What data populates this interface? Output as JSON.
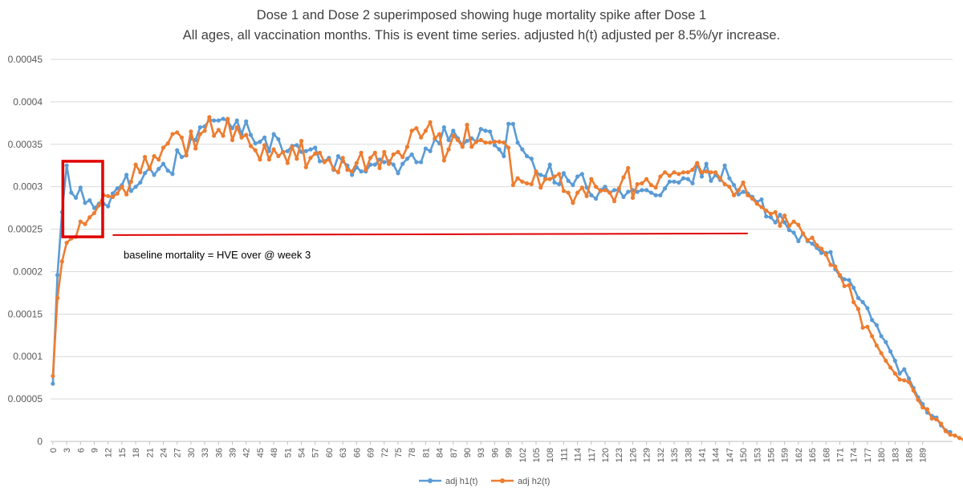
{
  "chart_data": {
    "type": "line",
    "title": "Dose 1 and Dose 2 superimposed  showing huge mortality spike after Dose 1",
    "subtitle": "All ages, all vaccination months. This is event time series. adjusted h(t) adjusted per 8.5%/yr increase.",
    "xlabel": "",
    "ylabel": "",
    "ylim": [
      0,
      0.00045
    ],
    "yticks": [
      "0",
      "0.00005",
      "0.0001",
      "0.00015",
      "0.0002",
      "0.00025",
      "0.0003",
      "0.00035",
      "0.0004",
      "0.00045"
    ],
    "xticks": [
      0,
      3,
      6,
      9,
      12,
      15,
      18,
      21,
      24,
      27,
      30,
      33,
      36,
      39,
      42,
      45,
      48,
      51,
      54,
      57,
      60,
      63,
      66,
      69,
      72,
      75,
      78,
      81,
      84,
      87,
      90,
      93,
      96,
      99,
      102,
      105,
      108,
      111,
      114,
      117,
      120,
      123,
      126,
      129,
      132,
      135,
      138,
      141,
      144,
      147,
      150,
      153,
      156,
      159,
      162,
      165,
      168,
      171,
      174,
      177,
      180,
      183,
      186,
      189
    ],
    "series": [
      {
        "name": "adj h1(t)",
        "color": "#5B9BD5",
        "values": [
          6.8e-05,
          0.000196,
          0.00027,
          0.000325,
          0.000293,
          0.000287,
          0.000299,
          0.000281,
          0.000284,
          0.000275,
          0.00028,
          0.00028,
          0.000277,
          0.000292,
          0.000298,
          0.000302,
          0.000314,
          0.000295,
          0.0003,
          0.000305,
          0.000316,
          0.000322,
          0.000314,
          0.000321,
          0.000327,
          0.000319,
          0.000315,
          0.000343,
          0.000335,
          0.000337,
          0.000357,
          0.000355,
          0.00037,
          0.000371,
          0.000379,
          0.000378,
          0.000378,
          0.00038,
          0.000377,
          0.000369,
          0.000378,
          0.000362,
          0.000377,
          0.000361,
          0.000351,
          0.000353,
          0.000358,
          0.000342,
          0.000362,
          0.000356,
          0.000341,
          0.000342,
          0.000348,
          0.000349,
          0.000341,
          0.000342,
          0.000344,
          0.000346,
          0.00033,
          0.00033,
          0.000334,
          0.00032,
          0.000336,
          0.00033,
          0.000325,
          0.000314,
          0.000323,
          0.000318,
          0.000318,
          0.000326,
          0.000326,
          0.000332,
          0.000329,
          0.00033,
          0.000326,
          0.000316,
          0.000327,
          0.000333,
          0.000338,
          0.000329,
          0.000329,
          0.000345,
          0.000342,
          0.000356,
          0.000351,
          0.00037,
          0.000355,
          0.000366,
          0.000357,
          0.000349,
          0.000354,
          0.000357,
          0.000353,
          0.000368,
          0.000366,
          0.000365,
          0.000349,
          0.000344,
          0.000336,
          0.000374,
          0.000374,
          0.000352,
          0.000344,
          0.000336,
          0.000333,
          0.000317,
          0.000314,
          0.000312,
          0.000326,
          0.000305,
          0.000303,
          0.000316,
          0.000307,
          0.000302,
          0.000312,
          0.000315,
          0.000299,
          0.00029,
          0.000286,
          0.000296,
          0.0003,
          0.000293,
          0.000296,
          0.000296,
          0.000288,
          0.000294,
          0.000296,
          0.000294,
          0.000296,
          0.000296,
          0.000293,
          0.00029,
          0.00029,
          0.000298,
          0.000306,
          0.000306,
          0.000305,
          0.00031,
          0.000309,
          0.000304,
          0.000327,
          0.000312,
          0.000327,
          0.000307,
          0.000314,
          0.000308,
          0.000325,
          0.00031,
          0.000302,
          0.000291,
          0.000294,
          0.000292,
          0.000288,
          0.000282,
          0.000285,
          0.000265,
          0.000264,
          0.000258,
          0.000267,
          0.000258,
          0.000249,
          0.000246,
          0.000236,
          0.000245,
          0.000236,
          0.000233,
          0.000228,
          0.000222,
          0.000222,
          0.000223,
          0.000203,
          0.000195,
          0.000191,
          0.00019,
          0.000181,
          0.000169,
          0.000164,
          0.000157,
          0.000143,
          0.000137,
          0.000124,
          0.000117,
          0.000106,
          9.5e-05,
          8e-05,
          8.5e-05,
          7.4e-05,
          6.3e-05,
          5.2e-05,
          4.4e-05,
          3.4e-05,
          3e-05,
          2.8e-05,
          1.9e-05,
          1.3e-05,
          1.1e-05
        ]
      },
      {
        "name": "adj h2(t)",
        "color": "#ED7D31",
        "values": [
          7.7e-05,
          0.000169,
          0.000212,
          0.000234,
          0.000239,
          0.000241,
          0.000259,
          0.000256,
          0.000264,
          0.000269,
          0.000278,
          0.00029,
          0.000289,
          0.000288,
          0.000292,
          0.0003,
          0.000291,
          0.000306,
          0.000326,
          0.000317,
          0.000335,
          0.000321,
          0.000336,
          0.000332,
          0.000346,
          0.000351,
          0.000362,
          0.000364,
          0.000358,
          0.000337,
          0.000365,
          0.000345,
          0.000362,
          0.000366,
          0.000382,
          0.00036,
          0.000367,
          0.00036,
          0.00038,
          0.000355,
          0.00037,
          0.000358,
          0.000361,
          0.000348,
          0.000343,
          0.000332,
          0.000349,
          0.000332,
          0.000344,
          0.000336,
          0.000341,
          0.000328,
          0.000347,
          0.000333,
          0.000354,
          0.000323,
          0.000334,
          0.000339,
          0.00034,
          0.000329,
          0.000332,
          0.000321,
          0.000317,
          0.000334,
          0.00032,
          0.000318,
          0.000328,
          0.00034,
          0.00032,
          0.000334,
          0.00034,
          0.000322,
          0.000341,
          0.000327,
          0.000338,
          0.000341,
          0.000335,
          0.000347,
          0.000366,
          0.000369,
          0.000358,
          0.000366,
          0.000376,
          0.000357,
          0.000362,
          0.000331,
          0.000344,
          0.00036,
          0.000355,
          0.000347,
          0.000373,
          0.000347,
          0.000353,
          0.000355,
          0.000352,
          0.000352,
          0.000353,
          0.000353,
          0.000352,
          0.000346,
          0.000302,
          0.00031,
          0.000306,
          0.000304,
          0.000303,
          0.000318,
          0.000299,
          0.000309,
          0.000309,
          0.000312,
          0.000315,
          0.000295,
          0.000293,
          0.000281,
          0.000293,
          0.000299,
          0.000289,
          0.000309,
          0.0003,
          0.000295,
          0.000296,
          0.000293,
          0.000283,
          0.000298,
          0.000311,
          0.000322,
          0.000287,
          0.000303,
          0.000304,
          0.000309,
          0.000302,
          0.000299,
          0.000312,
          0.000317,
          0.000313,
          0.000317,
          0.000315,
          0.000317,
          0.000317,
          0.00032,
          0.000328,
          0.000317,
          0.000318,
          0.000317,
          0.000317,
          0.00031,
          0.000303,
          0.0003,
          0.00029,
          0.000296,
          0.000305,
          0.00029,
          0.000286,
          0.00028,
          0.000276,
          0.000272,
          0.000268,
          0.00027,
          0.000254,
          0.000266,
          0.000254,
          0.000259,
          0.000255,
          0.000245,
          0.000237,
          0.00024,
          0.000231,
          0.000227,
          0.00022,
          0.000208,
          0.000206,
          0.000196,
          0.000183,
          0.000184,
          0.000164,
          0.000156,
          0.000134,
          0.000135,
          0.000124,
          0.000113,
          0.000104,
          9.5e-05,
          8.7e-05,
          8e-05,
          7.3e-05,
          7.2e-05,
          7e-05,
          6e-05,
          4.9e-05,
          4e-05,
          3.8e-05,
          2.7e-05,
          2.6e-05,
          2.1e-05,
          1.2e-05,
          8e-06,
          7e-06,
          4e-06,
          2e-06
        ]
      }
    ],
    "annotations": {
      "baseline_label": "baseline mortality = HVE over @ week 3",
      "baseline_value": 0.000244,
      "baseline_x_range": [
        13,
        151
      ],
      "spike_box_x_range": [
        2,
        11
      ],
      "spike_box_y_range": [
        0.000241,
        0.00033
      ]
    },
    "legend": {
      "position": "bottom",
      "entries": [
        "adj h1(t)",
        "adj h2(t)"
      ]
    },
    "grid": true
  }
}
